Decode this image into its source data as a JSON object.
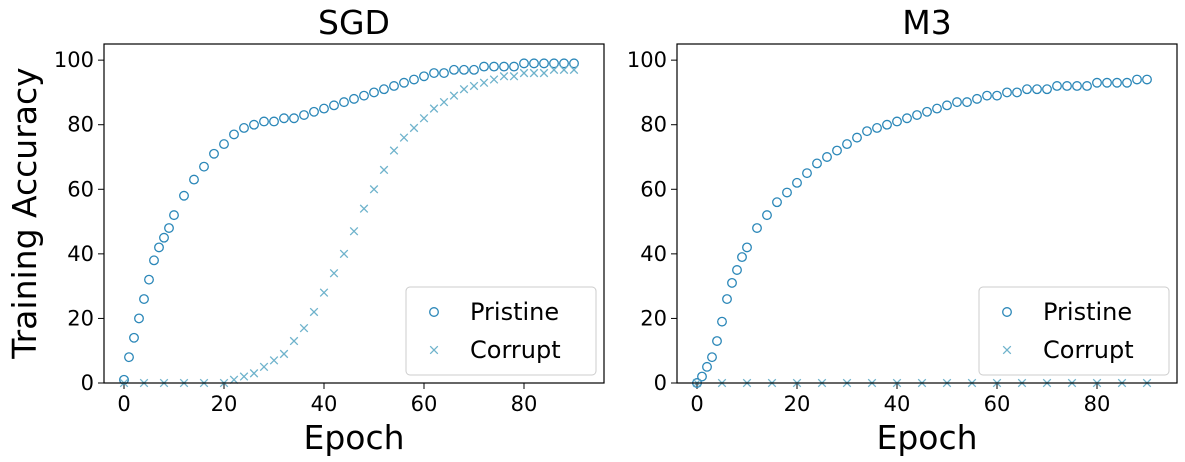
{
  "chart_data": [
    {
      "type": "scatter",
      "title": "SGD",
      "xlabel": "Epoch",
      "ylabel": "Training Accuracy",
      "xlim": [
        -4,
        96
      ],
      "ylim": [
        0,
        105
      ],
      "xticks": [
        "0",
        "20",
        "40",
        "60",
        "80"
      ],
      "yticks": [
        "0",
        "20",
        "40",
        "60",
        "80",
        "100"
      ],
      "legend_position": "lower-right",
      "series": [
        {
          "name": "Pristine",
          "marker": "circle",
          "color": "#2b87b8",
          "x": [
            0,
            1,
            2,
            3,
            4,
            5,
            6,
            7,
            8,
            9,
            10,
            12,
            14,
            16,
            18,
            20,
            22,
            24,
            26,
            28,
            30,
            32,
            34,
            36,
            38,
            40,
            42,
            44,
            46,
            48,
            50,
            52,
            54,
            56,
            58,
            60,
            62,
            64,
            66,
            68,
            70,
            72,
            74,
            76,
            78,
            80,
            82,
            84,
            86,
            88,
            90
          ],
          "y": [
            1,
            8,
            14,
            20,
            26,
            32,
            38,
            42,
            45,
            48,
            52,
            58,
            63,
            67,
            71,
            74,
            77,
            79,
            80,
            81,
            81,
            82,
            82,
            83,
            84,
            85,
            86,
            87,
            88,
            89,
            90,
            91,
            92,
            93,
            94,
            95,
            96,
            96,
            97,
            97,
            97,
            98,
            98,
            98,
            98,
            99,
            99,
            99,
            99,
            99,
            99
          ]
        },
        {
          "name": "Corrupt",
          "marker": "x",
          "color": "#6fb3cc",
          "x": [
            0,
            4,
            8,
            12,
            16,
            20,
            22,
            24,
            26,
            28,
            30,
            32,
            34,
            36,
            38,
            40,
            42,
            44,
            46,
            48,
            50,
            52,
            54,
            56,
            58,
            60,
            62,
            64,
            66,
            68,
            70,
            72,
            74,
            76,
            78,
            80,
            82,
            84,
            86,
            88,
            90
          ],
          "y": [
            0,
            0,
            0,
            0,
            0,
            0,
            1,
            2,
            3,
            5,
            7,
            9,
            13,
            17,
            22,
            28,
            34,
            40,
            47,
            54,
            60,
            66,
            72,
            76,
            79,
            82,
            85,
            87,
            89,
            91,
            92,
            93,
            94,
            95,
            95,
            96,
            96,
            96,
            97,
            97,
            97
          ]
        }
      ]
    },
    {
      "type": "scatter",
      "title": "M3",
      "xlabel": "Epoch",
      "ylabel": "",
      "xlim": [
        -4,
        96
      ],
      "ylim": [
        0,
        105
      ],
      "xticks": [
        "0",
        "20",
        "40",
        "60",
        "80"
      ],
      "yticks": [
        "0",
        "20",
        "40",
        "60",
        "80",
        "100"
      ],
      "legend_position": "lower-right",
      "series": [
        {
          "name": "Pristine",
          "marker": "circle",
          "color": "#2b87b8",
          "x": [
            0,
            1,
            2,
            3,
            4,
            5,
            6,
            7,
            8,
            9,
            10,
            12,
            14,
            16,
            18,
            20,
            22,
            24,
            26,
            28,
            30,
            32,
            34,
            36,
            38,
            40,
            42,
            44,
            46,
            48,
            50,
            52,
            54,
            56,
            58,
            60,
            62,
            64,
            66,
            68,
            70,
            72,
            74,
            76,
            78,
            80,
            82,
            84,
            86,
            88,
            90
          ],
          "y": [
            0,
            2,
            5,
            8,
            13,
            19,
            26,
            31,
            35,
            39,
            42,
            48,
            52,
            56,
            59,
            62,
            65,
            68,
            70,
            72,
            74,
            76,
            78,
            79,
            80,
            81,
            82,
            83,
            84,
            85,
            86,
            87,
            87,
            88,
            89,
            89,
            90,
            90,
            91,
            91,
            91,
            92,
            92,
            92,
            92,
            93,
            93,
            93,
            93,
            94,
            94
          ]
        },
        {
          "name": "Corrupt",
          "marker": "x",
          "color": "#6fb3cc",
          "x": [
            0,
            5,
            10,
            15,
            20,
            25,
            30,
            35,
            40,
            45,
            50,
            55,
            60,
            65,
            70,
            75,
            80,
            85,
            90
          ],
          "y": [
            0,
            0,
            0,
            0,
            0,
            0,
            0,
            0,
            0,
            0,
            0,
            0,
            0,
            0,
            0,
            0,
            0,
            0,
            0
          ]
        }
      ]
    }
  ]
}
